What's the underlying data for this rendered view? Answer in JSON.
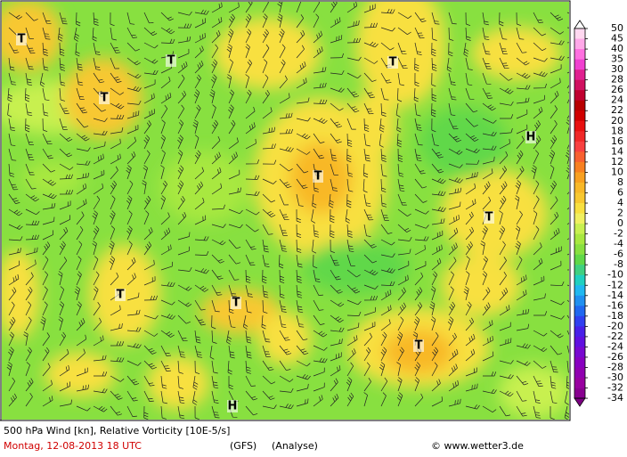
{
  "footer": {
    "title": "500 hPa Wind [kn], Relative Vorticity [10E-5/s]",
    "date": "Montag, 12-08-2013   18 UTC",
    "model": "(GFS)",
    "run": "(Analyse)",
    "source": "© www.wetter3.de"
  },
  "pressure_centers": [
    "T",
    "T",
    "T",
    "T",
    "T",
    "T",
    "T",
    "T",
    "T",
    "H",
    "H"
  ],
  "colorbar": {
    "labels": [
      50,
      45,
      40,
      35,
      30,
      28,
      26,
      24,
      22,
      20,
      18,
      16,
      14,
      12,
      10,
      8,
      6,
      4,
      2,
      0,
      -2,
      -4,
      -6,
      -8,
      -10,
      -12,
      -14,
      -16,
      -18,
      -20,
      -22,
      -24,
      -26,
      -28,
      -30,
      -32,
      -34
    ],
    "colors": [
      "#ffd8f0",
      "#ffa8e8",
      "#ff70e0",
      "#f040d0",
      "#e02090",
      "#d01060",
      "#c00030",
      "#b80000",
      "#d00000",
      "#e81010",
      "#f02828",
      "#f84040",
      "#f86030",
      "#f88020",
      "#f8a020",
      "#f8b828",
      "#f8c830",
      "#f8e040",
      "#f0f060",
      "#c8f050",
      "#a8e840",
      "#88e040",
      "#60d848",
      "#40d080",
      "#20d0c0",
      "#20b8f0",
      "#2090f0",
      "#2068f0",
      "#3040f0",
      "#4820e8",
      "#6010e0",
      "#7808d0",
      "#8800c0",
      "#9000b0",
      "#9800a0",
      "#880090"
    ],
    "top_color": "#ffffff",
    "bottom_color": "#7a0080"
  }
}
